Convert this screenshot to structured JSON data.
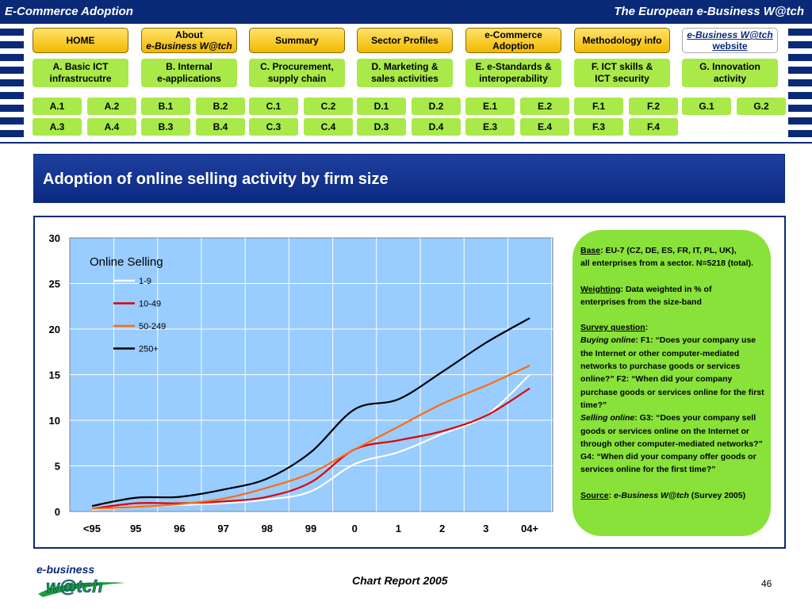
{
  "header": {
    "left_title": "E-Commerce Adoption",
    "right_title": "The European e-Business W@tch"
  },
  "nav": [
    {
      "line1": "HOME",
      "line2": ""
    },
    {
      "line1": "About",
      "line2": "e-Business W@tch"
    },
    {
      "line1": "Summary",
      "line2": ""
    },
    {
      "line1": "Sector Profiles",
      "line2": ""
    },
    {
      "line1": "e-Commerce",
      "line2": "Adoption"
    },
    {
      "line1": "Methodology info",
      "line2": ""
    },
    {
      "line1": "e-Business W@tch",
      "line2": "website"
    }
  ],
  "categories": [
    {
      "line1": "A. Basic ICT",
      "line2": "infrastrucutre"
    },
    {
      "line1": "B. Internal",
      "line2": "e-applications"
    },
    {
      "line1": "C. Procurement,",
      "line2": "supply chain"
    },
    {
      "line1": "D. Marketing &",
      "line2": "sales activities"
    },
    {
      "line1": "E. e-Standards &",
      "line2": "interoperability"
    },
    {
      "line1": "F. ICT skills &",
      "line2": "ICT security"
    },
    {
      "line1": "G. Innovation",
      "line2": "activity"
    }
  ],
  "subcats_row1": [
    "A.1",
    "A.2",
    "B.1",
    "B.2",
    "C.1",
    "C.2",
    "D.1",
    "D.2",
    "E.1",
    "E.2",
    "F.1",
    "F.2",
    "G.1",
    "G.2"
  ],
  "subcats_row2": [
    "A.3",
    "A.4",
    "B.3",
    "B.4",
    "C.3",
    "C.4",
    "D.3",
    "D.4",
    "E.3",
    "E.4",
    "F.3",
    "F.4"
  ],
  "page_title": "Adoption of online selling activity by firm size",
  "notes": {
    "base_label": "Base",
    "base_text": ": EU-7 (CZ, DE, ES, FR, IT, PL, UK),",
    "base_text2": "all enterprises from a sector. N=5218 (total).",
    "weighting_label": "Weighting",
    "weighting_text": ": Data weighted in % of",
    "weighting_text2": "enterprises from the size-band",
    "survey_label": "Survey question",
    "survey_colon": ":",
    "buying_label": "Buying online",
    "buying_text": ": F1: “Does your company use the Internet or other computer-mediated networks to purchase goods or services online?” F2: “When did your company purchase goods or services online for the first time?”",
    "selling_label": "Selling online",
    "selling_text": ": G3: “Does your company sell goods or services online on the Internet or through other computer-mediated networks?” G4: “When did your company offer goods or services online for the first time?”",
    "source_label": "Source",
    "source_colon": ": ",
    "source_name": "e-Business W@tch",
    "source_text": " (Survey 2005)"
  },
  "footer": {
    "logo_top": "e-business",
    "logo_bottom": "w@tch",
    "center": "Chart Report 2005",
    "page": "46"
  },
  "colors": {
    "navy": "#0a2a78",
    "nav_yellow": "#f6c400",
    "category_green": "#a9e94a",
    "notes_green": "#88e23a",
    "plot_bg": "#99ccff"
  },
  "chart_data": {
    "type": "line",
    "title": "Online Selling",
    "xlabel": "",
    "ylabel": "",
    "categories": [
      "<95",
      "95",
      "96",
      "97",
      "98",
      "99",
      "0",
      "1",
      "2",
      "3",
      "04+"
    ],
    "ylim": [
      0,
      30
    ],
    "yticks": [
      0,
      5,
      10,
      15,
      20,
      25,
      30
    ],
    "grid": true,
    "legend_position": "top-left",
    "series": [
      {
        "name": "1-9",
        "color": "#ffffff",
        "values": [
          0.2,
          0.5,
          0.7,
          0.9,
          1.3,
          2.2,
          5.2,
          6.5,
          8.5,
          10.5,
          15.0
        ]
      },
      {
        "name": "10-49",
        "color": "#e00000",
        "values": [
          0.3,
          0.9,
          0.9,
          1.1,
          1.6,
          3.2,
          6.8,
          7.8,
          8.8,
          10.5,
          13.5
        ]
      },
      {
        "name": "50-249",
        "color": "#ff6a10",
        "values": [
          0.3,
          0.5,
          0.8,
          1.4,
          2.6,
          4.2,
          6.8,
          9.3,
          11.8,
          13.8,
          16.0
        ]
      },
      {
        "name": "250+",
        "color": "#000000",
        "values": [
          0.6,
          1.5,
          1.6,
          2.4,
          3.6,
          6.5,
          11.2,
          12.3,
          15.3,
          18.5,
          21.2
        ]
      }
    ]
  }
}
